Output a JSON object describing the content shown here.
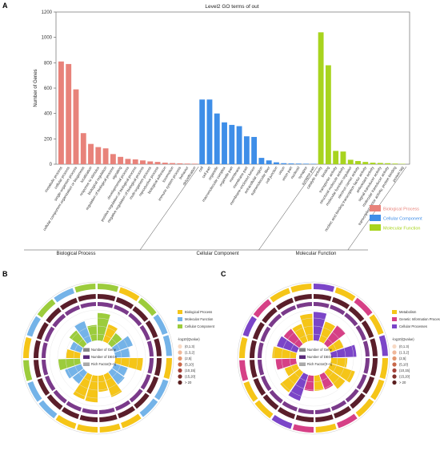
{
  "panels": {
    "a": "A",
    "b": "B",
    "c": "C"
  },
  "chart_data": [
    {
      "type": "bar",
      "title": "Level2 GO terms of out",
      "ylabel": "Number of Genes",
      "ylim": [
        0,
        1200
      ],
      "yticks": [
        0,
        200,
        400,
        600,
        800,
        1000,
        1200
      ],
      "groups": [
        {
          "name": "Biological Process",
          "color": "#e8827a",
          "categories": [
            "metabolic process",
            "cellular process",
            "single-organism process",
            "cellular component organization or biogenesis",
            "localization",
            "response to stimulus",
            "biological regulation",
            "regulation of biological process",
            "signaling",
            "developmental process",
            "positive regulation of biological process",
            "negative regulation of biological process",
            "multi-organism process",
            "reproductive process",
            "biological adhesion",
            "locomotion",
            "immune system process",
            "behavior",
            "detoxification"
          ],
          "values": [
            810,
            790,
            590,
            245,
            160,
            135,
            125,
            80,
            58,
            42,
            38,
            30,
            22,
            18,
            12,
            9,
            7,
            5,
            4
          ]
        },
        {
          "name": "Cellular Component",
          "color": "#3e8ee8",
          "categories": [
            "cell",
            "cell part",
            "organelle",
            "macromolecular complex",
            "organelle part",
            "membrane",
            "membrane part",
            "membrane-enclosed lumen",
            "extracellular region",
            "supramolecular fiber",
            "cell junction",
            "virion",
            "virion part",
            "nucleoid",
            "synapse",
            "synapse part"
          ],
          "values": [
            510,
            510,
            400,
            330,
            310,
            300,
            220,
            215,
            50,
            30,
            15,
            8,
            6,
            5,
            4,
            3
          ]
        },
        {
          "name": "Molecular Function",
          "color": "#a8d41e",
          "categories": [
            "catalytic activity",
            "binding",
            "transporter activity",
            "structural molecule activity",
            "molecular function regulator",
            "electron carrier activity",
            "nucleic acid binding transcription factor activity",
            "antioxidant activity",
            "signal transducer activity",
            "molecular transducer activity",
            "transcription factor activity, protein binding",
            "protein tag"
          ],
          "values": [
            1040,
            780,
            105,
            100,
            35,
            25,
            18,
            12,
            10,
            8,
            5,
            3
          ]
        }
      ],
      "legend": "right"
    },
    {
      "type": "circular-bar",
      "legend": [
        "Biological Process",
        "Molecular Function",
        "Cellular Component"
      ],
      "legend_colors": [
        "#f5c518",
        "#74b3e8",
        "#9ccc3c"
      ],
      "rows": [
        "Number of Gene",
        "Number of DEGs",
        "Rich Factor(0~1)"
      ],
      "qvalue_title": "-log10(Qvalue)",
      "qvalue_bins": [
        "(0,1.3)",
        "(1.3,2]",
        "(2,5]",
        "(5,10]",
        "(10,15]",
        "(15,20]",
        "> 20"
      ]
    },
    {
      "type": "circular-bar",
      "legend": [
        "Metabolism",
        "Genetic Information Processing",
        "Cellular Processes"
      ],
      "legend_colors": [
        "#f5c518",
        "#d64086",
        "#7b45c8"
      ],
      "rows": [
        "Number of Gene",
        "Number of DEGs",
        "Rich Factor(0~1)"
      ],
      "qvalue_title": "-log10(Qvalue)",
      "qvalue_bins": [
        "(0,1.3)",
        "(1.3,2]",
        "(2,5]",
        "(5,10]",
        "(10,15]",
        "(15,20]",
        "> 20"
      ]
    }
  ]
}
